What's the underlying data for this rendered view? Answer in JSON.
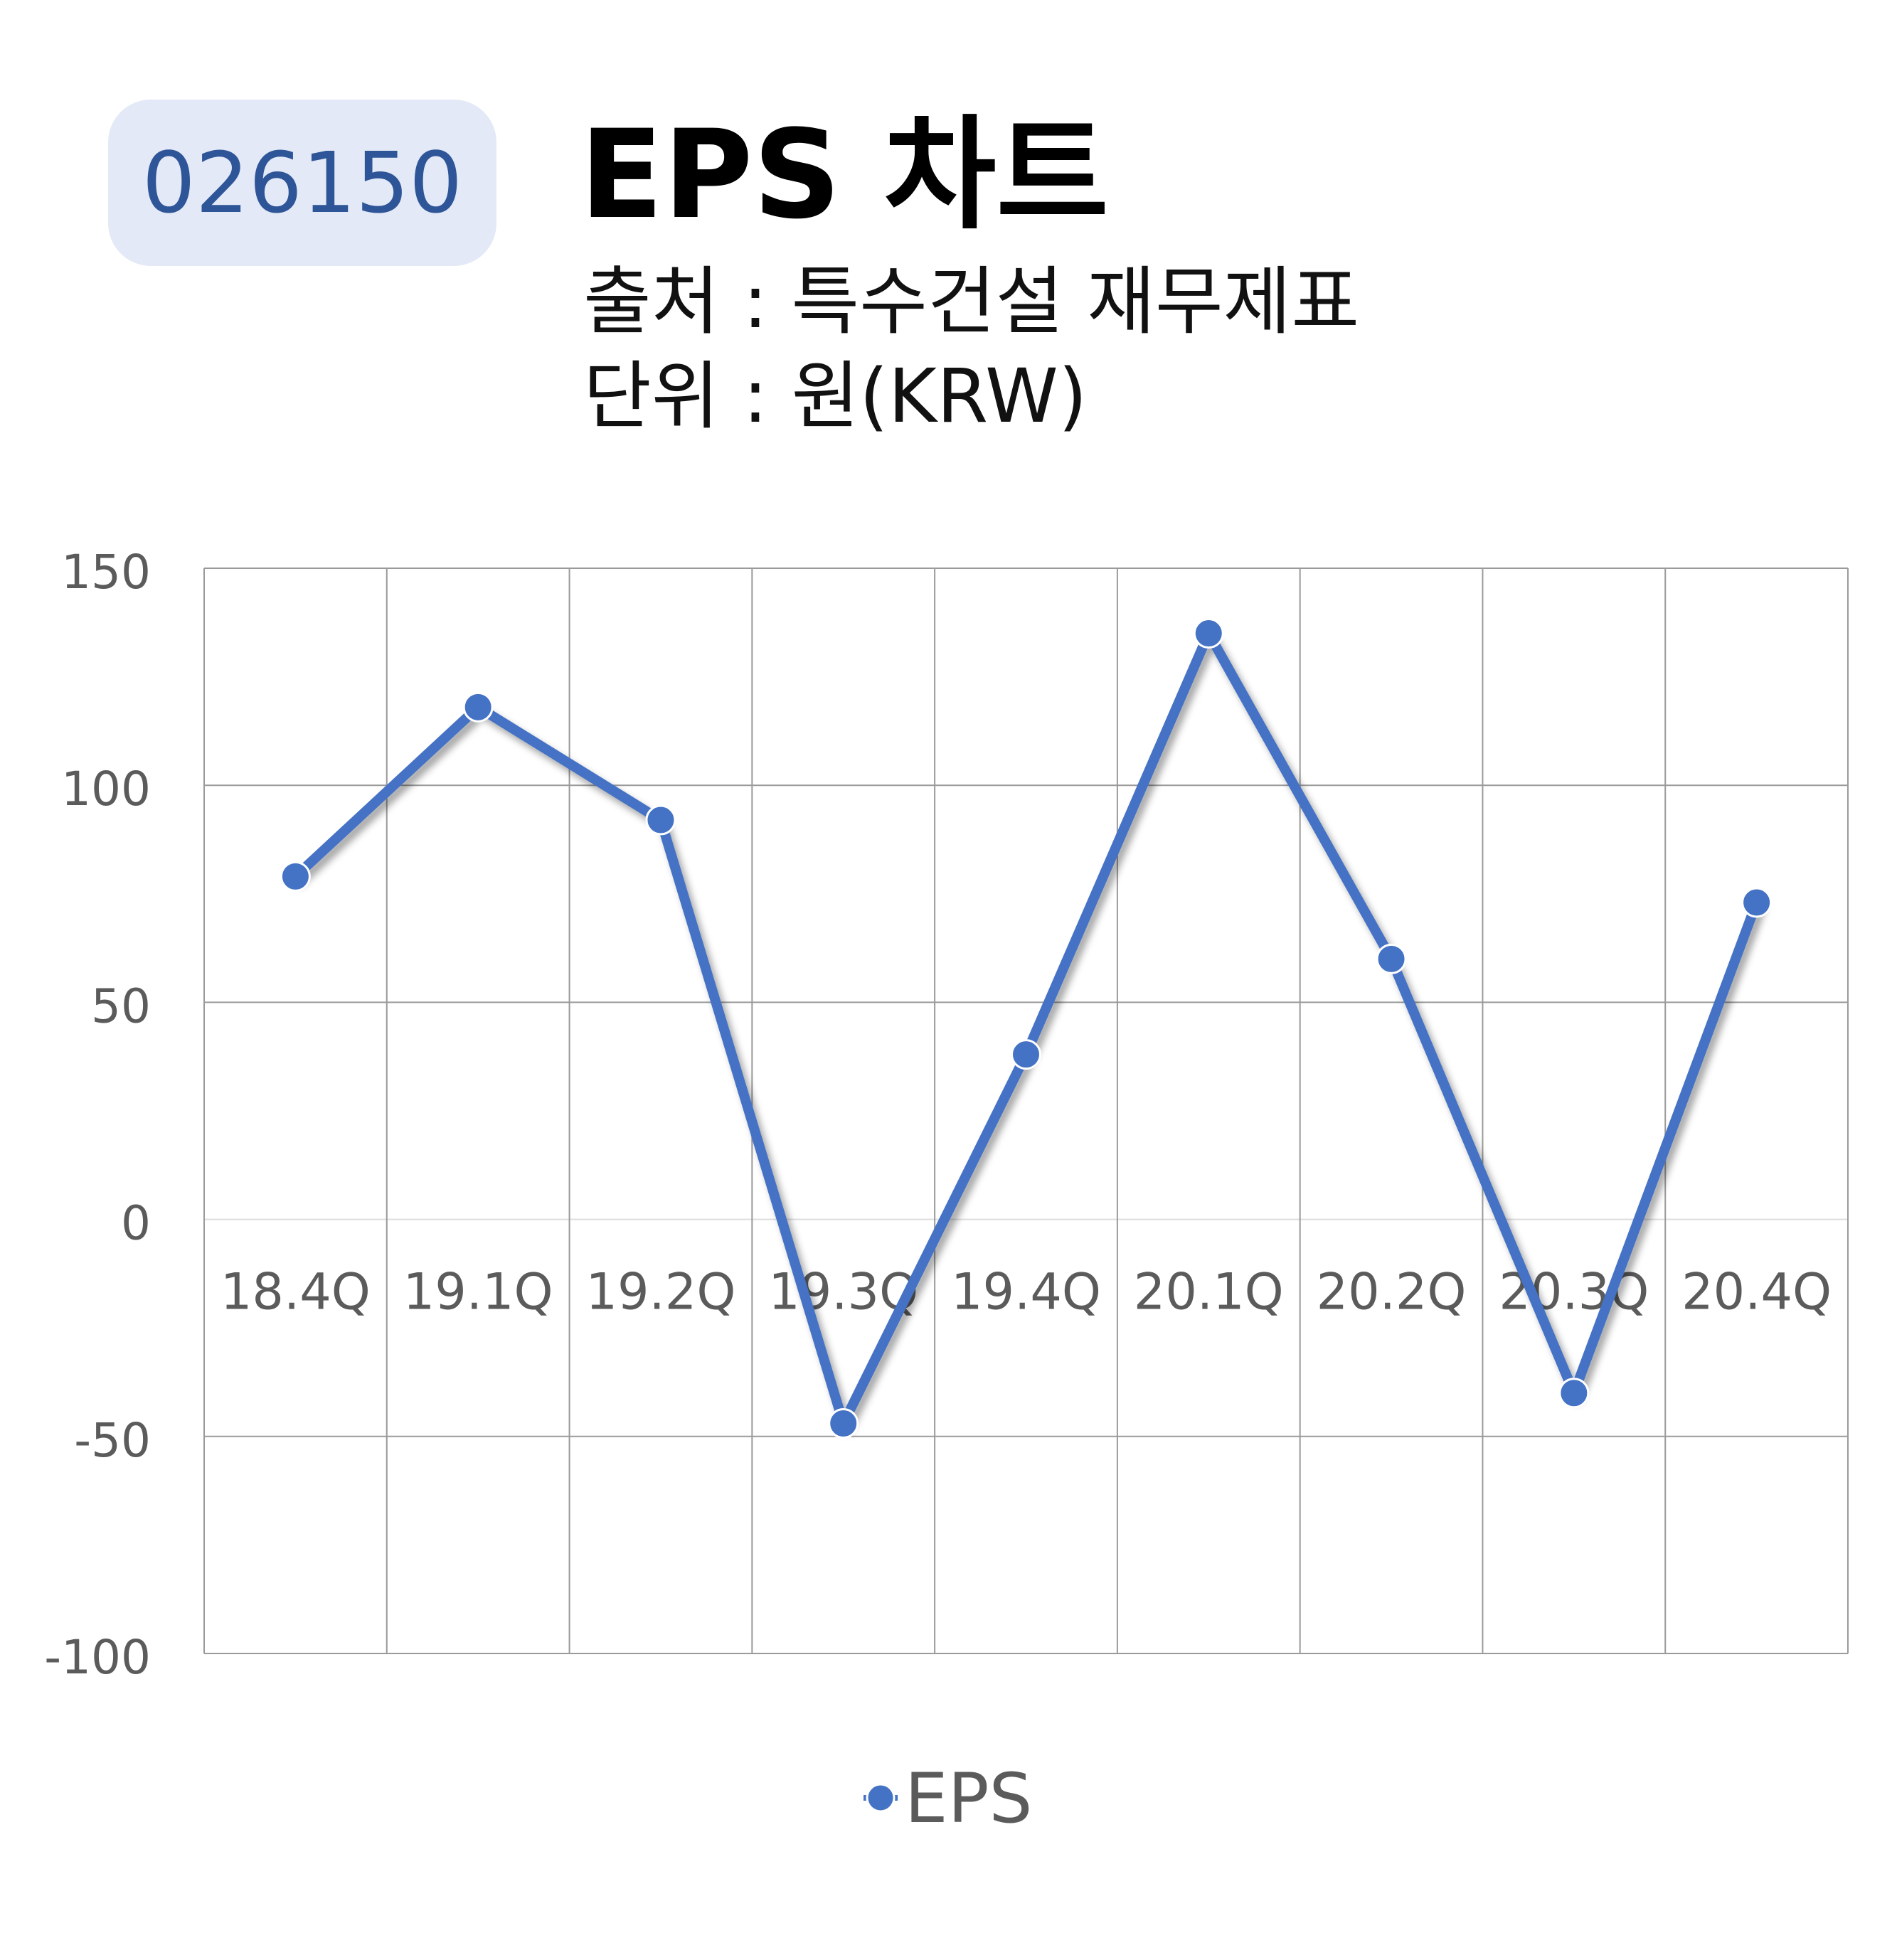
{
  "header": {
    "stock_code": "026150",
    "title": "EPS 차트",
    "source_line": "출처 : 특수건설 재무제표",
    "unit_line": "단위 : 원(KRW)"
  },
  "colors": {
    "badge_bg": "#e3e9f6",
    "badge_text": "#2e5597",
    "series": "#4472c4",
    "grid": "#9a9a9a",
    "tick_text": "#5b5b5b"
  },
  "chart_data": {
    "type": "line",
    "categories": [
      "18.4Q",
      "19.1Q",
      "19.2Q",
      "19.3Q",
      "19.4Q",
      "20.1Q",
      "20.2Q",
      "20.3Q",
      "20.4Q"
    ],
    "series": [
      {
        "name": "EPS",
        "values": [
          79,
          118,
          92,
          -47,
          38,
          135,
          60,
          -40,
          73
        ]
      }
    ],
    "ylim": [
      -100,
      150
    ],
    "yticks": [
      150,
      100,
      50,
      0,
      -50,
      -100
    ],
    "ytick_labels": [
      "150",
      "100",
      "50",
      "0",
      "-50",
      "-100"
    ],
    "grid": true,
    "legend_position": "bottom"
  }
}
